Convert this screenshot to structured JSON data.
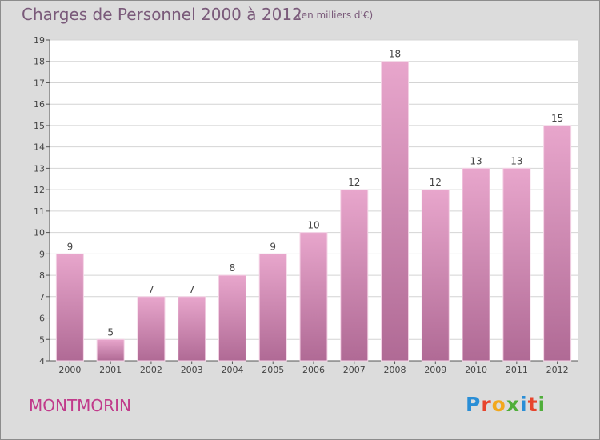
{
  "title": "Charges de Personnel 2000 à 2012",
  "subtitle": "(en milliers d'€)",
  "town": "MONTMORIN",
  "logo": {
    "text": "Proxiti",
    "colors": [
      "#2a8ed6",
      "#e7442c",
      "#f2a81d",
      "#4fae3a",
      "#2a8ed6",
      "#e7442c",
      "#4fae3a"
    ]
  },
  "colors": {
    "bar_top": "#e8a6cc",
    "bar_bottom": "#b06a95",
    "title": "#7a5a7a",
    "town": "#c13b8b",
    "background": "#dcdcdc"
  },
  "chart_data": {
    "type": "bar",
    "categories": [
      "2000",
      "2001",
      "2002",
      "2003",
      "2004",
      "2005",
      "2006",
      "2007",
      "2008",
      "2009",
      "2010",
      "2011",
      "2012"
    ],
    "values": [
      9,
      5,
      7,
      7,
      8,
      9,
      10,
      12,
      18,
      12,
      13,
      13,
      15
    ],
    "ylim": [
      4,
      19
    ],
    "yticks": [
      4,
      5,
      6,
      7,
      8,
      9,
      10,
      11,
      12,
      13,
      14,
      15,
      16,
      17,
      18,
      19
    ],
    "grid": true
  }
}
